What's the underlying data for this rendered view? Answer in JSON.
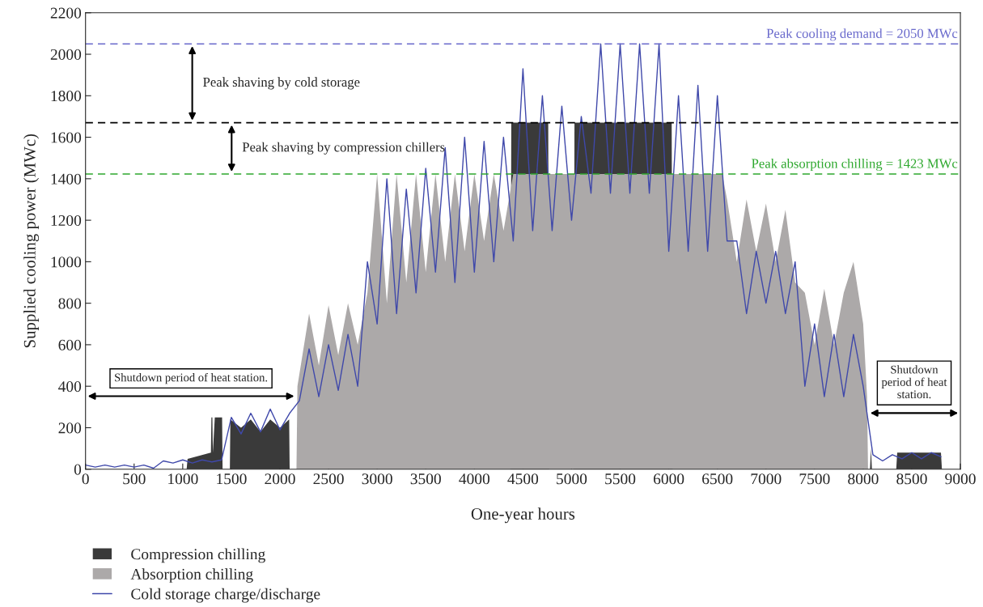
{
  "chart_data": {
    "type": "area",
    "xlabel": "One-year hours",
    "ylabel": "Supplied cooling power (MWc)",
    "xlim": [
      0,
      9000
    ],
    "xticks": [
      0,
      500,
      1000,
      1500,
      2000,
      2500,
      3000,
      3500,
      4000,
      4500,
      5000,
      5500,
      6000,
      6500,
      7000,
      7500,
      8000,
      8500,
      9000
    ],
    "ylim": [
      0,
      2200
    ],
    "yticks": [
      0,
      200,
      400,
      600,
      800,
      1000,
      1200,
      1400,
      1600,
      1800,
      2000,
      2200
    ],
    "grid": false,
    "legend": "bottom",
    "series": [
      {
        "name": "Compression chilling",
        "color": "#3a3a3a",
        "x": [
          1040,
          1050,
          1290,
          1295,
          1305,
          1310,
          1330,
          1405,
          1410,
          1485,
          1490,
          1600,
          1700,
          1800,
          1900,
          2000,
          2095,
          2100,
          4370,
          4380,
          4760,
          4770,
          5020,
          5030,
          6030,
          6040,
          8070,
          8080,
          8090,
          8340,
          8350,
          8800,
          8810
        ],
        "values": [
          0,
          50,
          80,
          250,
          250,
          80,
          250,
          250,
          0,
          0,
          240,
          200,
          240,
          180,
          240,
          200,
          240,
          0,
          0,
          1670,
          1670,
          0,
          0,
          1670,
          1670,
          0,
          0,
          100,
          0,
          0,
          80,
          80,
          0
        ]
      },
      {
        "name": "Absorption chilling",
        "color": "#aca9a9",
        "x": [
          2170,
          2180,
          2300,
          2400,
          2500,
          2600,
          2700,
          2800,
          2900,
          3000,
          3100,
          3200,
          3300,
          3400,
          3500,
          3600,
          3700,
          3800,
          3900,
          4000,
          4100,
          4200,
          4300,
          4400,
          6550,
          6600,
          6700,
          6800,
          6900,
          7000,
          7100,
          7200,
          7300,
          7400,
          7500,
          7600,
          7700,
          7800,
          7900,
          8000,
          8040,
          8050
        ],
        "values": [
          0,
          400,
          750,
          500,
          790,
          550,
          800,
          600,
          850,
          1423,
          800,
          1423,
          900,
          1423,
          950,
          1423,
          1000,
          1423,
          1050,
          1423,
          1100,
          1423,
          1150,
          1423,
          1423,
          1300,
          1000,
          1300,
          1050,
          1280,
          1000,
          1250,
          900,
          850,
          600,
          870,
          600,
          850,
          1000,
          700,
          350,
          0
        ]
      },
      {
        "name": "Cold storage charge/discharge",
        "type": "line",
        "color": "#3f48aa",
        "x": [
          0,
          100,
          200,
          300,
          400,
          500,
          600,
          700,
          800,
          900,
          1000,
          1100,
          1200,
          1300,
          1400,
          1500,
          1600,
          1700,
          1800,
          1900,
          2000,
          2100,
          2200,
          2300,
          2400,
          2500,
          2600,
          2700,
          2800,
          2900,
          3000,
          3100,
          3200,
          3300,
          3400,
          3500,
          3600,
          3700,
          3800,
          3900,
          4000,
          4100,
          4200,
          4300,
          4400,
          4500,
          4600,
          4700,
          4800,
          4900,
          5000,
          5100,
          5200,
          5300,
          5400,
          5500,
          5600,
          5700,
          5800,
          5900,
          6000,
          6100,
          6200,
          6300,
          6400,
          6500,
          6600,
          6700,
          6800,
          6900,
          7000,
          7100,
          7200,
          7300,
          7400,
          7500,
          7600,
          7700,
          7800,
          7900,
          8000,
          8100,
          8200,
          8300,
          8400,
          8500,
          8600,
          8700,
          8800
        ],
        "values": [
          20,
          10,
          20,
          10,
          20,
          10,
          20,
          5,
          40,
          30,
          45,
          30,
          45,
          35,
          45,
          250,
          170,
          270,
          180,
          290,
          190,
          270,
          330,
          580,
          350,
          600,
          380,
          650,
          400,
          1000,
          700,
          1400,
          750,
          1350,
          850,
          1450,
          950,
          1550,
          900,
          1600,
          950,
          1580,
          1000,
          1600,
          1100,
          1930,
          1150,
          1800,
          1150,
          1750,
          1200,
          1700,
          1330,
          2050,
          1330,
          2050,
          1330,
          2050,
          1330,
          2050,
          1050,
          1800,
          1050,
          1850,
          1050,
          1800,
          1100,
          1100,
          750,
          1050,
          800,
          1050,
          750,
          1000,
          400,
          700,
          350,
          650,
          350,
          650,
          400,
          70,
          40,
          70,
          50,
          80,
          50,
          80,
          60
        ]
      }
    ],
    "ref_lines": [
      {
        "axis": "y",
        "value": 2050,
        "label": "Peak cooling demand = 2050 MWc",
        "color": "#6a6acc",
        "line_style": "dashed"
      },
      {
        "axis": "y",
        "value": 1670,
        "color": "#000000",
        "line_style": "dashed"
      },
      {
        "axis": "y",
        "value": 1423,
        "label": "Peak absorption chilling = 1423 MWc",
        "color": "#2ea82e",
        "line_style": "dashed"
      }
    ],
    "annotations": [
      "Peak shaving by cold storage",
      "Peak shaving by compression chillers",
      "Shutdown period of heat station.",
      "Shutdown\nperiod of heat\nstation."
    ]
  }
}
